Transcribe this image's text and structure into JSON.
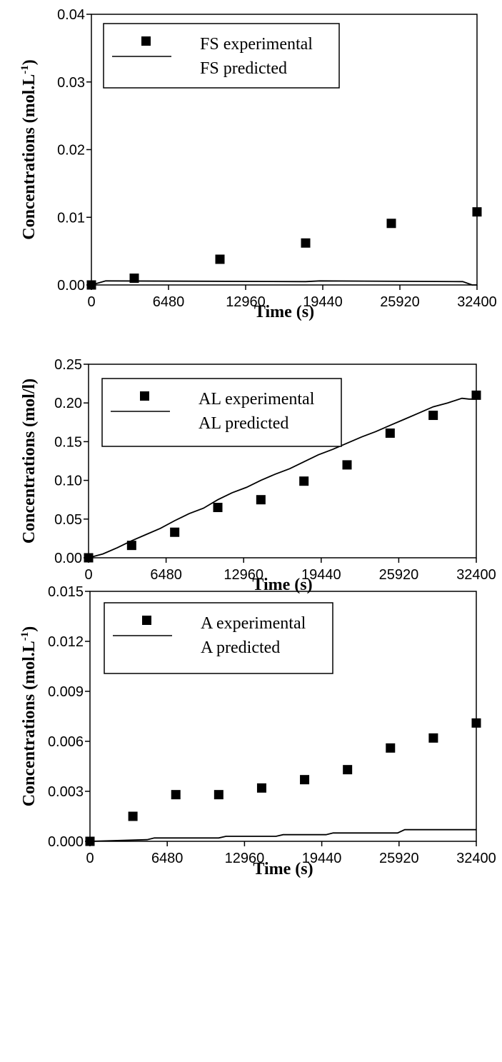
{
  "chart_data": [
    {
      "type": "scatter",
      "xlabel": "Time (s)",
      "ylabel": "Concentrations (mol.L-1)",
      "ylabel_main": "Concentrations (mol.L",
      "ylabel_sup": "-1",
      "ylabel_close": ")",
      "xlim": [
        0,
        32400
      ],
      "ylim": [
        0,
        0.04
      ],
      "xticks": [
        0,
        6480,
        12960,
        19440,
        25920,
        32400
      ],
      "xtick_labels": [
        "0",
        "6480",
        "12960",
        "19440",
        "25920",
        "32400"
      ],
      "yticks": [
        0,
        0.01,
        0.02,
        0.03,
        0.04
      ],
      "ytick_labels": [
        "0.00",
        "0.01",
        "0.02",
        "0.03",
        "0.04"
      ],
      "grid": false,
      "legend_position": "top-left",
      "series": [
        {
          "name": "FS experimental",
          "kind": "marker",
          "x": [
            0,
            3600,
            10800,
            18000,
            25200,
            32400
          ],
          "y": [
            0.0,
            0.001,
            0.0038,
            0.0062,
            0.0091,
            0.0108
          ]
        },
        {
          "name": "FS predicted",
          "kind": "line",
          "x": [
            0,
            1200,
            18000,
            19200,
            31200,
            32000,
            32400
          ],
          "y": [
            0.0,
            0.0006,
            0.0005,
            0.0006,
            0.0005,
            0.0,
            0.0
          ]
        }
      ]
    },
    {
      "type": "scatter",
      "xlabel": "Time (s)",
      "ylabel": "Concentrations (mol/l)",
      "ylabel_main": "Concentrations (mol/l)",
      "ylabel_sup": "",
      "ylabel_close": "",
      "xlim": [
        0,
        32400
      ],
      "ylim": [
        0,
        0.25
      ],
      "xticks": [
        0,
        6480,
        12960,
        19440,
        25920,
        32400
      ],
      "xtick_labels": [
        "0",
        "6480",
        "12960",
        "19440",
        "25920",
        "32400"
      ],
      "yticks": [
        0,
        0.05,
        0.1,
        0.15,
        0.2,
        0.25
      ],
      "ytick_labels": [
        "0.00",
        "0.05",
        "0.10",
        "0.15",
        "0.20",
        "0.25"
      ],
      "grid": false,
      "legend_position": "top-left",
      "series": [
        {
          "name": "AL experimental",
          "kind": "marker",
          "x": [
            0,
            3600,
            7200,
            10800,
            14400,
            18000,
            21600,
            25200,
            28800,
            32400
          ],
          "y": [
            0.0,
            0.016,
            0.033,
            0.065,
            0.075,
            0.099,
            0.12,
            0.161,
            0.184,
            0.21
          ]
        },
        {
          "name": "AL predicted",
          "kind": "line",
          "x": [
            0,
            1200,
            2400,
            3600,
            4800,
            6000,
            7200,
            8400,
            9600,
            10800,
            12000,
            13200,
            14400,
            15600,
            16800,
            18000,
            19200,
            20400,
            21600,
            22800,
            24000,
            25200,
            26400,
            27600,
            28800,
            30000,
            31200,
            31800,
            32400
          ],
          "y": [
            0.0,
            0.005,
            0.013,
            0.022,
            0.03,
            0.038,
            0.048,
            0.057,
            0.064,
            0.075,
            0.084,
            0.091,
            0.1,
            0.108,
            0.115,
            0.124,
            0.133,
            0.14,
            0.148,
            0.156,
            0.163,
            0.171,
            0.179,
            0.187,
            0.195,
            0.2,
            0.206,
            0.205,
            0.205
          ]
        }
      ]
    },
    {
      "type": "scatter",
      "xlabel": "Time (s)",
      "ylabel": "Concentrations (mol.L-1)",
      "ylabel_main": "Concentrations (mol.L",
      "ylabel_sup": "-1",
      "ylabel_close": ")",
      "xlim": [
        0,
        32400
      ],
      "ylim": [
        0,
        0.015
      ],
      "xticks": [
        0,
        6480,
        12960,
        19440,
        25920,
        32400
      ],
      "xtick_labels": [
        "0",
        "6480",
        "12960",
        "19440",
        "25920",
        "32400"
      ],
      "yticks": [
        0,
        0.003,
        0.006,
        0.009,
        0.012,
        0.015
      ],
      "ytick_labels": [
        "0.000",
        "0.003",
        "0.006",
        "0.009",
        "0.012",
        "0.015"
      ],
      "grid": false,
      "legend_position": "top-left",
      "series": [
        {
          "name": "A experimental",
          "kind": "marker",
          "x": [
            0,
            3600,
            7200,
            10800,
            14400,
            18000,
            21600,
            25200,
            28800,
            32400
          ],
          "y": [
            0.0,
            0.0015,
            0.0028,
            0.0028,
            0.0032,
            0.0037,
            0.0043,
            0.0056,
            0.0062,
            0.0071
          ]
        },
        {
          "name": "A predicted",
          "kind": "line",
          "x": [
            0,
            4800,
            5400,
            10800,
            11400,
            15600,
            16200,
            19800,
            20400,
            25800,
            26400,
            32400
          ],
          "y": [
            0.0,
            0.0001,
            0.0002,
            0.0002,
            0.0003,
            0.0003,
            0.0004,
            0.0004,
            0.0005,
            0.0005,
            0.0007,
            0.0007
          ]
        }
      ]
    }
  ]
}
